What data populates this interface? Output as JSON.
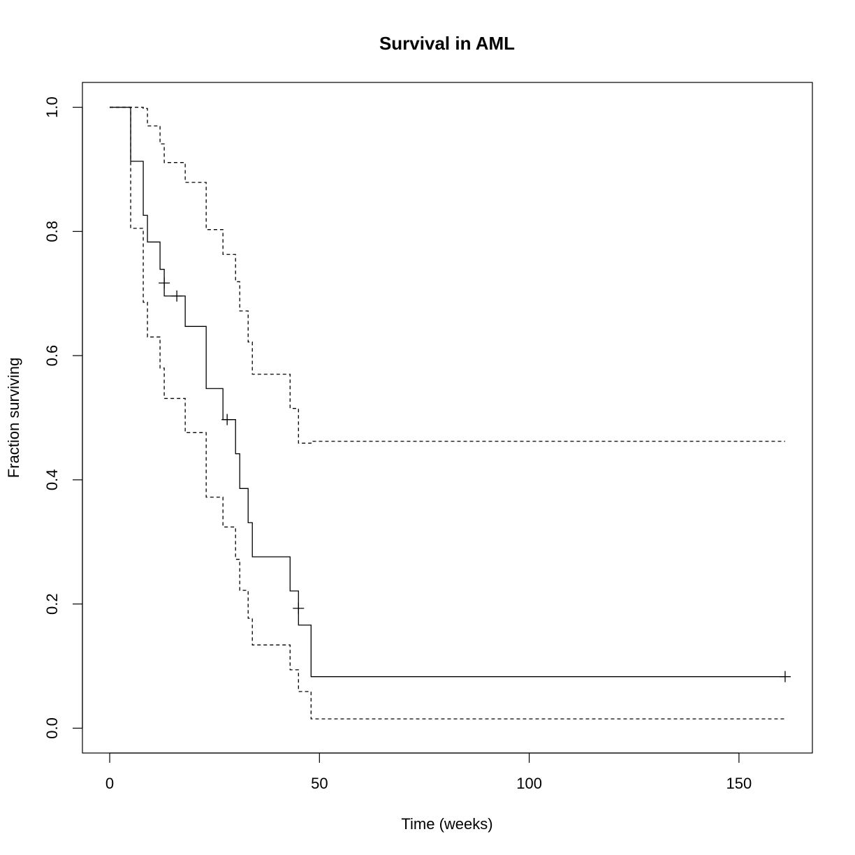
{
  "chart_data": {
    "type": "line",
    "title": "Survival in AML",
    "xlabel": "Time (weeks)",
    "ylabel": "Fraction surviving",
    "xlim": [
      -6.5,
      167.5
    ],
    "ylim": [
      -0.04,
      1.04
    ],
    "x_ticks": [
      0,
      50,
      100,
      150
    ],
    "y_ticks": [
      0.0,
      0.2,
      0.4,
      0.6,
      0.8,
      1.0
    ],
    "x_tick_labels": [
      "0",
      "50",
      "100",
      "150"
    ],
    "y_tick_labels": [
      "0.0",
      "0.2",
      "0.4",
      "0.6",
      "0.8",
      "1.0"
    ],
    "grid": false,
    "legend": "none",
    "series": [
      {
        "role": "estimate",
        "style": "solid",
        "color": "#000000",
        "steps": [
          [
            0,
            1.0
          ],
          [
            5,
            0.913
          ],
          [
            8,
            0.826
          ],
          [
            9,
            0.783
          ],
          [
            12,
            0.739
          ],
          [
            13,
            0.696
          ],
          [
            18,
            0.647
          ],
          [
            23,
            0.547
          ],
          [
            27,
            0.497
          ],
          [
            30,
            0.442
          ],
          [
            31,
            0.386
          ],
          [
            33,
            0.331
          ],
          [
            34,
            0.276
          ],
          [
            43,
            0.221
          ],
          [
            45,
            0.166
          ],
          [
            48,
            0.083
          ],
          [
            161,
            0.083
          ]
        ],
        "censored": [
          [
            13,
            0.717
          ],
          [
            16,
            0.696
          ],
          [
            28,
            0.497
          ],
          [
            45,
            0.193
          ],
          [
            161,
            0.083
          ]
        ]
      },
      {
        "role": "upper-confidence-limit",
        "style": "dashed",
        "color": "#000000",
        "steps": [
          [
            0,
            1.0
          ],
          [
            8,
            0.998
          ],
          [
            9,
            0.97
          ],
          [
            12,
            0.941
          ],
          [
            13,
            0.911
          ],
          [
            18,
            0.879
          ],
          [
            23,
            0.803
          ],
          [
            27,
            0.763
          ],
          [
            30,
            0.719
          ],
          [
            31,
            0.672
          ],
          [
            33,
            0.622
          ],
          [
            34,
            0.57
          ],
          [
            43,
            0.515
          ],
          [
            45,
            0.459
          ],
          [
            48,
            0.462
          ],
          [
            161,
            0.462
          ]
        ]
      },
      {
        "role": "lower-confidence-limit",
        "style": "dashed",
        "color": "#000000",
        "steps": [
          [
            0,
            1.0
          ],
          [
            5,
            0.805
          ],
          [
            8,
            0.686
          ],
          [
            9,
            0.63
          ],
          [
            12,
            0.58
          ],
          [
            13,
            0.531
          ],
          [
            18,
            0.476
          ],
          [
            23,
            0.372
          ],
          [
            27,
            0.324
          ],
          [
            30,
            0.272
          ],
          [
            31,
            0.222
          ],
          [
            33,
            0.177
          ],
          [
            34,
            0.134
          ],
          [
            43,
            0.094
          ],
          [
            45,
            0.059
          ],
          [
            48,
            0.015
          ],
          [
            161,
            0.015
          ]
        ]
      }
    ]
  }
}
